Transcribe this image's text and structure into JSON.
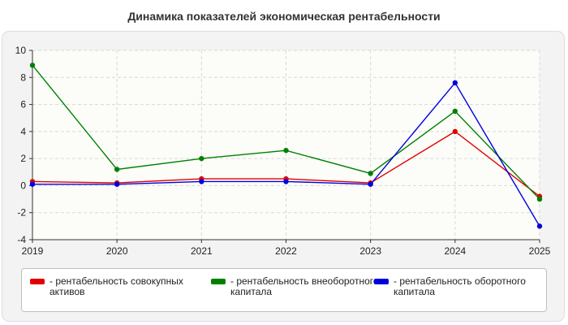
{
  "chart_data": {
    "type": "line",
    "title": "Динамика показателей экономическая рентабельности",
    "x": [
      "2019",
      "2020",
      "2021",
      "2022",
      "2023",
      "2024",
      "2025"
    ],
    "ylim": [
      -4,
      10
    ],
    "yticks": [
      "10",
      "8",
      "6",
      "4",
      "2",
      "0",
      "-2",
      "-4"
    ],
    "grid": true,
    "legend_position": "bottom",
    "series": [
      {
        "name": "- рентабельность совокупных активов",
        "color": "#e00000",
        "values": [
          0.3,
          0.2,
          0.5,
          0.5,
          0.2,
          4.0,
          -0.8
        ]
      },
      {
        "name": "- рентабельность внеоборотного капитала",
        "color": "#008000",
        "values": [
          8.9,
          1.2,
          2.0,
          2.6,
          0.9,
          5.5,
          -1.0
        ]
      },
      {
        "name": "- рентабельность оборотного капитала",
        "color": "#0000e0",
        "values": [
          0.1,
          0.1,
          0.3,
          0.3,
          0.1,
          7.6,
          -3.0
        ]
      }
    ]
  }
}
